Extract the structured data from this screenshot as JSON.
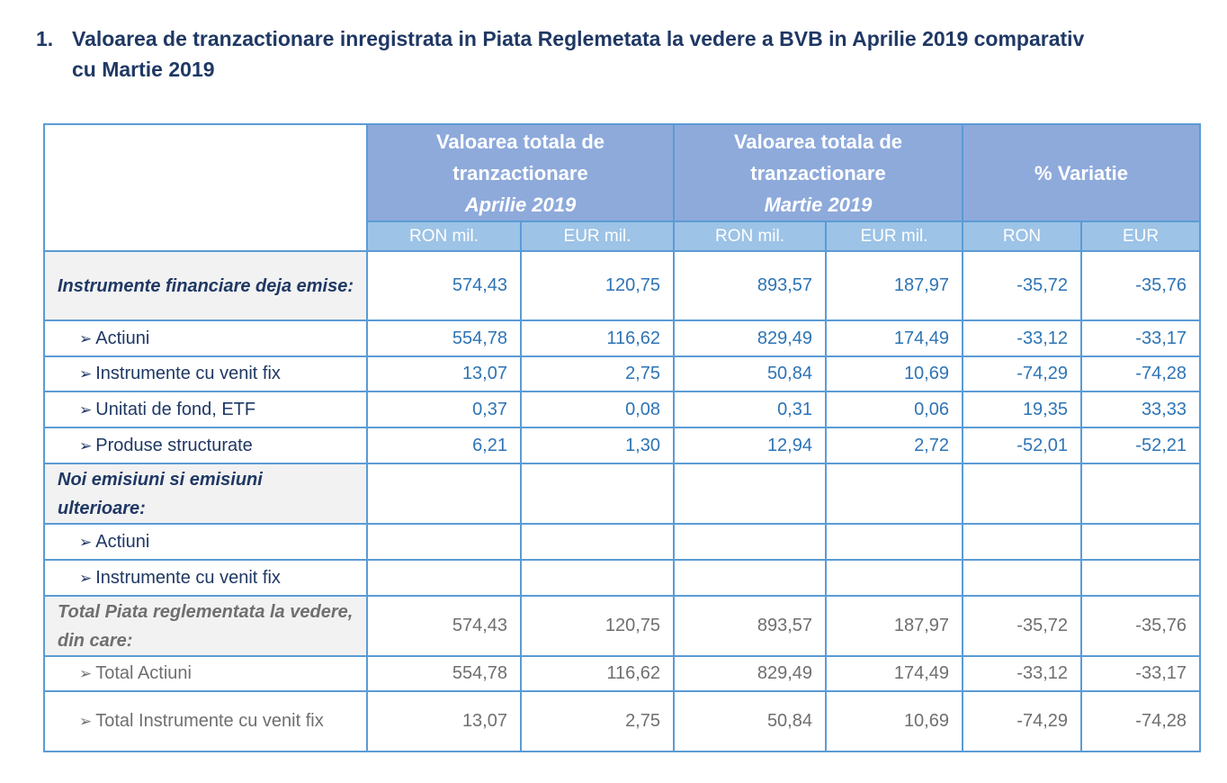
{
  "heading": {
    "number": "1.",
    "line1": "Valoarea de tranzactionare inregistrata in Piata Reglemetata la vedere a BVB in Aprilie 2019 comparativ",
    "line2": "cu Martie 2019"
  },
  "table": {
    "groups": [
      {
        "line1": "Valoarea totala de",
        "line2": "tranzactionare",
        "period": "Aprilie 2019"
      },
      {
        "line1": "Valoarea totala de",
        "line2": "tranzactionare",
        "period": "Martie 2019"
      },
      {
        "line1": "% Variatie",
        "line2": "",
        "period": ""
      }
    ],
    "subheaders": [
      "RON mil.",
      "EUR mil.",
      "RON mil.",
      "EUR mil.",
      "RON",
      "EUR"
    ],
    "rows": [
      {
        "label": "Instrumente financiare  deja emise:",
        "type": "header",
        "values": [
          "574,43",
          "120,75",
          "893,57",
          "187,97",
          "-35,72",
          "-35,76"
        ]
      },
      {
        "label": "Actiuni",
        "type": "item",
        "values": [
          "554,78",
          "116,62",
          "829,49",
          "174,49",
          "-33,12",
          "-33,17"
        ]
      },
      {
        "label": "Instrumente cu venit fix",
        "type": "item",
        "values": [
          "13,07",
          "2,75",
          "50,84",
          "10,69",
          "-74,29",
          "-74,28"
        ]
      },
      {
        "label": "Unitati de fond, ETF",
        "type": "item",
        "values": [
          "0,37",
          "0,08",
          "0,31",
          "0,06",
          "19,35",
          "33,33"
        ]
      },
      {
        "label": "Produse structurate",
        "type": "item",
        "values": [
          "6,21",
          "1,30",
          "12,94",
          "2,72",
          "-52,01",
          "-52,21"
        ]
      },
      {
        "label": "Noi emisiuni si emisiuni ulterioare:",
        "type": "header",
        "values": [
          "",
          "",
          "",
          "",
          "",
          ""
        ]
      },
      {
        "label": "Actiuni",
        "type": "item",
        "values": [
          "",
          "",
          "",
          "",
          "",
          ""
        ]
      },
      {
        "label": "Instrumente cu venit fix",
        "type": "item",
        "values": [
          "",
          "",
          "",
          "",
          "",
          ""
        ]
      },
      {
        "label": "Total Piata reglementata la vedere, din care:",
        "type": "header-gray",
        "values": [
          "574,43",
          "120,75",
          "893,57",
          "187,97",
          "-35,72",
          "-35,76"
        ]
      },
      {
        "label": "Total Actiuni",
        "type": "item-gray",
        "values": [
          "554,78",
          "116,62",
          "829,49",
          "174,49",
          "-33,12",
          "-33,17"
        ]
      },
      {
        "label": "Total Instrumente cu venit fix",
        "type": "item-gray",
        "values": [
          "13,07",
          "2,75",
          "50,84",
          "10,69",
          "-74,29",
          "-74,28"
        ]
      }
    ]
  },
  "colors": {
    "header": "#8eaadb",
    "subheader": "#9dc3e6",
    "border": "#5b9bd5",
    "value": "#2e74b5",
    "label": "#1f3864",
    "gray": "#6f6f6f"
  }
}
